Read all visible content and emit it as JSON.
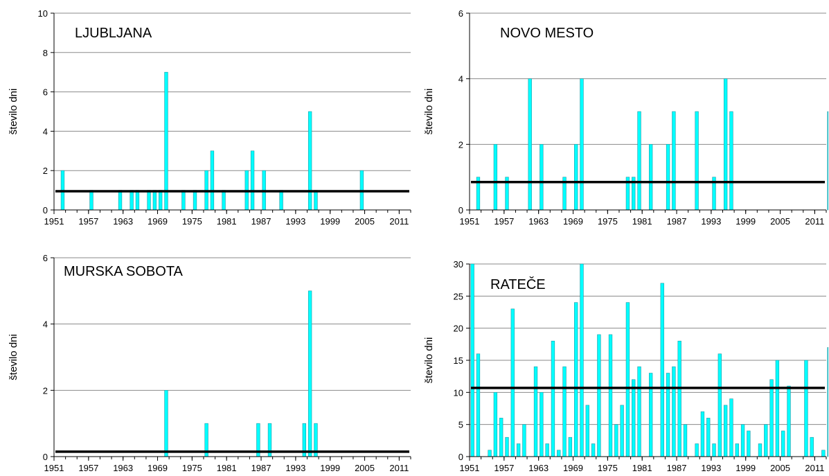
{
  "colors": {
    "bar": "#00ffff",
    "bar_edge": "#1e9aa6",
    "mean_line": "#000000",
    "axis": "#000000"
  },
  "chart_data": [
    {
      "type": "bar",
      "title": "LJUBLJANA",
      "ylabel": "število dni",
      "ylim": [
        0,
        10
      ],
      "yticks": [
        "0",
        "2",
        "4",
        "6",
        "8",
        "10"
      ],
      "xlim": [
        1951,
        2013
      ],
      "xticks": [
        "1951",
        "1957",
        "1963",
        "1969",
        "1975",
        "1981",
        "1987",
        "1993",
        "1999",
        "2005",
        "2011"
      ],
      "mean": 0.95,
      "x": [
        1952,
        1957,
        1962,
        1964,
        1965,
        1967,
        1968,
        1969,
        1970,
        1973,
        1975,
        1977,
        1978,
        1980,
        1984,
        1985,
        1987,
        1990,
        1995,
        1996,
        2004
      ],
      "values": [
        2,
        1,
        1,
        1,
        1,
        1,
        1,
        1,
        7,
        1,
        1,
        2,
        3,
        1,
        2,
        3,
        2,
        1,
        5,
        1,
        2
      ]
    },
    {
      "type": "bar",
      "title": "NOVO MESTO",
      "ylabel": "število dni",
      "ylim": [
        0,
        6
      ],
      "yticks": [
        "0",
        "2",
        "4",
        "6"
      ],
      "xlim": [
        1951,
        2013
      ],
      "xticks": [
        "1951",
        "1957",
        "1963",
        "1969",
        "1975",
        "1981",
        "1987",
        "1993",
        "1999",
        "2005",
        "2011"
      ],
      "mean": 0.85,
      "x": [
        1952,
        1955,
        1957,
        1961,
        1963,
        1967,
        1969,
        1970,
        1978,
        1979,
        1980,
        1982,
        1985,
        1986,
        1990,
        1993,
        1995,
        1996,
        2013
      ],
      "values": [
        1,
        2,
        1,
        4,
        2,
        1,
        2,
        4,
        1,
        1,
        3,
        2,
        2,
        3,
        3,
        1,
        4,
        3,
        3
      ]
    },
    {
      "type": "bar",
      "title": "MURSKA SOBOTA",
      "ylabel": "število dni",
      "ylim": [
        0,
        6
      ],
      "yticks": [
        "0",
        "2",
        "4",
        "6"
      ],
      "xlim": [
        1951,
        2013
      ],
      "xticks": [
        "1951",
        "1957",
        "1963",
        "1969",
        "1975",
        "1981",
        "1987",
        "1993",
        "1999",
        "2005",
        "2011"
      ],
      "mean": 0.15,
      "x": [
        1970,
        1977,
        1986,
        1988,
        1994,
        1995,
        1996
      ],
      "values": [
        2,
        1,
        1,
        1,
        1,
        5,
        1
      ]
    },
    {
      "type": "bar",
      "title": "RATEČE",
      "ylabel": "število dni",
      "ylim": [
        0,
        30
      ],
      "yticks": [
        "0",
        "5",
        "10",
        "15",
        "20",
        "25",
        "30"
      ],
      "xlim": [
        1951,
        2013
      ],
      "xticks": [
        "1951",
        "1957",
        "1963",
        "1969",
        "1975",
        "1981",
        "1987",
        "1993",
        "1999",
        "2005",
        "2011"
      ],
      "mean": 10.7,
      "x": [
        1951,
        1952,
        1954,
        1955,
        1956,
        1957,
        1958,
        1959,
        1960,
        1962,
        1963,
        1964,
        1965,
        1966,
        1967,
        1968,
        1969,
        1970,
        1971,
        1972,
        1973,
        1975,
        1976,
        1977,
        1978,
        1979,
        1980,
        1982,
        1984,
        1985,
        1986,
        1987,
        1988,
        1990,
        1991,
        1992,
        1993,
        1994,
        1995,
        1996,
        1997,
        1998,
        1999,
        2001,
        2002,
        2003,
        2004,
        2005,
        2006,
        2009,
        2010,
        2012,
        2013
      ],
      "values": [
        30,
        16,
        1,
        10,
        6,
        3,
        23,
        2,
        5,
        14,
        10,
        2,
        18,
        1,
        14,
        3,
        24,
        30,
        8,
        2,
        19,
        19,
        5,
        8,
        24,
        12,
        14,
        13,
        27,
        13,
        14,
        18,
        5,
        2,
        7,
        6,
        2,
        16,
        8,
        9,
        2,
        5,
        4,
        2,
        5,
        12,
        15,
        4,
        11,
        15,
        3,
        1,
        17
      ]
    }
  ]
}
